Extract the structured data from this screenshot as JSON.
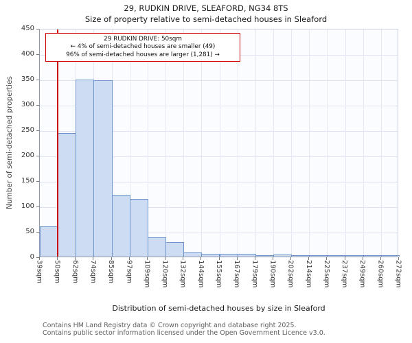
{
  "footer": {
    "line1": "Contains HM Land Registry data © Crown copyright and database right 2025.",
    "line2": "Contains public sector information licensed under the Open Government Licence v3.0."
  },
  "chart_data": {
    "type": "bar",
    "title": "29, RUDKIN DRIVE, SLEAFORD, NG34 8TS",
    "subtitle": "Size of property relative to semi-detached houses in Sleaford",
    "xlabel": "Distribution of semi-detached houses by size in Sleaford",
    "ylabel": "Number of semi-detached properties",
    "bin_edges_sqm": [
      39,
      50,
      62,
      74,
      85,
      97,
      109,
      120,
      132,
      144,
      155,
      167,
      179,
      190,
      202,
      214,
      225,
      237,
      249,
      260,
      272
    ],
    "tick_labels": [
      "39sqm",
      "50sqm",
      "62sqm",
      "74sqm",
      "85sqm",
      "97sqm",
      "109sqm",
      "120sqm",
      "132sqm",
      "144sqm",
      "155sqm",
      "167sqm",
      "179sqm",
      "190sqm",
      "202sqm",
      "214sqm",
      "225sqm",
      "237sqm",
      "249sqm",
      "260sqm",
      "272sqm"
    ],
    "values": [
      60,
      243,
      348,
      347,
      122,
      114,
      38,
      28,
      8,
      5,
      5,
      5,
      2,
      4,
      2,
      1,
      1,
      1,
      1,
      1
    ],
    "ylim": [
      0,
      450
    ],
    "yticks": [
      0,
      50,
      100,
      150,
      200,
      250,
      300,
      350,
      400,
      450
    ],
    "grid": true,
    "legend": "none",
    "marker_value_sqm": 50,
    "marker_color": "#cc0000",
    "bar_fill": "#cddcf3",
    "bar_edge": "#6f96ca",
    "annotation": {
      "line1": "29 RUDKIN DRIVE: 50sqm",
      "line2": "← 4% of semi-detached houses are smaller (49)",
      "line3": "96% of semi-detached houses are larger (1,281) →"
    }
  }
}
